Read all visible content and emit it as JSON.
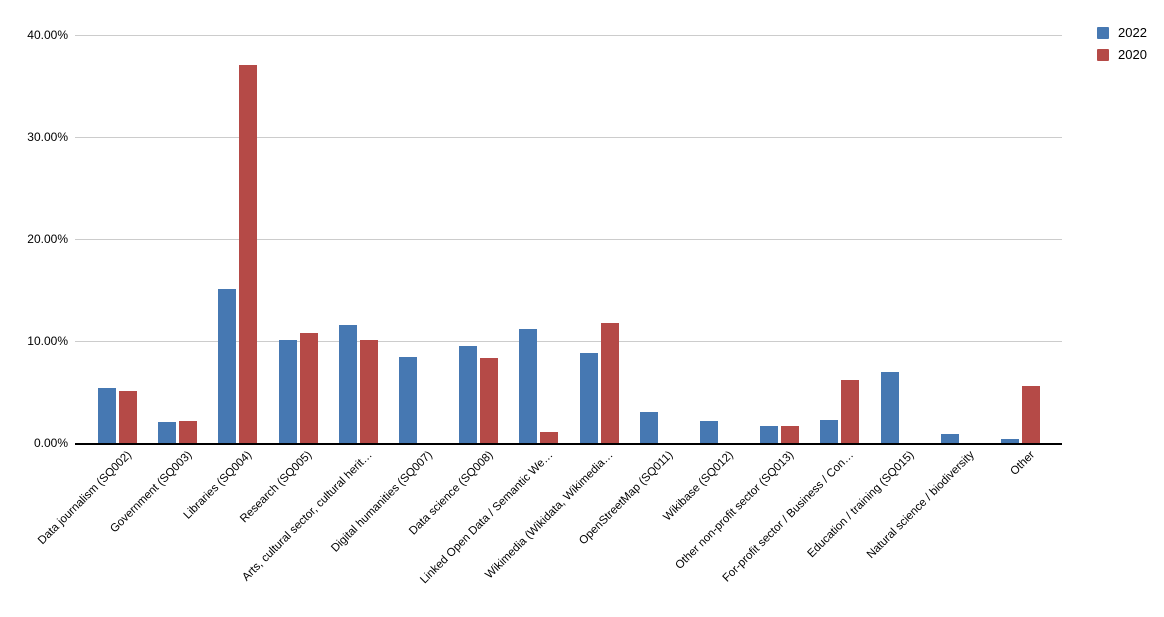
{
  "chart_data": {
    "type": "bar",
    "title": "",
    "xlabel": "",
    "ylabel": "",
    "ylim": [
      0,
      40
    ],
    "grid": true,
    "legend_position": "top-right",
    "ytick_labels": [
      "0.00%",
      "10.00%",
      "20.00%",
      "30.00%",
      "40.00%"
    ],
    "categories": [
      "Data journalism (SQ002)",
      "Government (SQ003)",
      "Libraries (SQ004)",
      "Research (SQ005)",
      "Arts, cultural sector, cultural herit…",
      "Digital humanities (SQ007)",
      "Data science (SQ008)",
      "Linked Open Data / Semantic We…",
      "Wikimedia (Wikidata, Wikimedia…",
      "OpenStreetMap (SQ011)",
      "Wikibase (SQ012)",
      "Other non-profit sector (SQ013)",
      "For-profit sector / Business / Con…",
      "Education / training (SQ015)",
      "Natural science / biodiversity",
      "Other"
    ],
    "series": [
      {
        "name": "2022",
        "color": "#4678b2",
        "values": [
          5.4,
          2.1,
          15.1,
          10.1,
          11.6,
          8.4,
          9.5,
          11.2,
          8.8,
          3.0,
          2.2,
          1.7,
          2.3,
          7.0,
          0.9,
          0.4
        ]
      },
      {
        "name": "2020",
        "color": "#b54a47",
        "values": [
          5.1,
          2.2,
          37.1,
          10.8,
          10.1,
          0,
          8.3,
          1.1,
          11.8,
          0,
          0,
          1.7,
          6.2,
          0,
          0,
          5.6
        ]
      }
    ]
  }
}
